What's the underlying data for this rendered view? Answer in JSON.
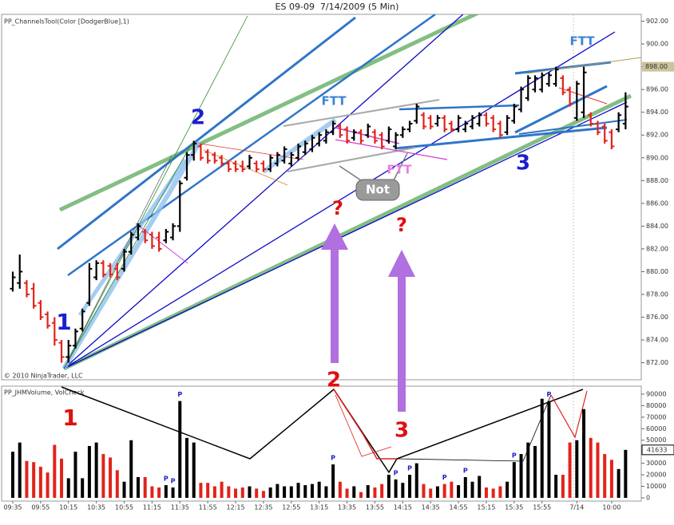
{
  "chart_data": [
    {
      "type": "ohlc",
      "title": "ES 09-09  7/14/2009 (5 Min)",
      "indicator": "PP_ChannelsTool(Color [DodgerBlue],1)",
      "copyright": "© 2010 NinjaTrader, LLC",
      "up_color": "#000000",
      "down_color": "#e2231a",
      "ylim": [
        870.5,
        902.6
      ],
      "yticks": [
        {
          "value": 872,
          "label": "872.00"
        },
        {
          "value": 874,
          "label": "874.00"
        },
        {
          "value": 876,
          "label": "876.00"
        },
        {
          "value": 878,
          "label": "878.00"
        },
        {
          "value": 880,
          "label": "880.00"
        },
        {
          "value": 882,
          "label": "882.00"
        },
        {
          "value": 884,
          "label": "884.00"
        },
        {
          "value": 886,
          "label": "886.00"
        },
        {
          "value": 888,
          "label": "888.00"
        },
        {
          "value": 890,
          "label": "890.00"
        },
        {
          "value": 892,
          "label": "892.00"
        },
        {
          "value": 894,
          "label": "894.00"
        },
        {
          "value": 896,
          "label": "896.00"
        },
        {
          "value": 898,
          "label": "898.00"
        },
        {
          "value": 900,
          "label": "900.00"
        },
        {
          "value": 902,
          "label": "902.00"
        }
      ],
      "price_line": {
        "value": 898,
        "label": "898.00",
        "color": "#cbc39b"
      },
      "open": [
        878.5,
        879,
        879,
        878.5,
        877.25,
        876.25,
        875.5,
        873.75,
        872.5,
        873.5,
        875,
        877.25,
        879.5,
        880.75,
        880.5,
        880.25,
        880.25,
        881.75,
        883,
        883.5,
        883.25,
        883,
        882.75,
        883,
        884,
        888.25,
        890.25,
        891,
        890.5,
        890.25,
        890,
        889.5,
        889.5,
        889.25,
        889.25,
        889.5,
        889.5,
        889,
        889.5,
        889.75,
        889.5,
        890,
        890.5,
        890.75,
        891.25,
        891.5,
        892.25,
        892.75,
        892.5,
        891.75,
        892.25,
        892,
        892.25,
        892,
        891.5,
        891,
        892,
        892.5,
        893.25,
        893.75,
        893.5,
        893,
        893.5,
        893,
        892.5,
        892.5,
        892.75,
        893,
        893.75,
        893.5,
        893,
        892.25,
        893.25,
        894.25,
        895.25,
        896,
        896,
        896.5,
        896.5,
        897,
        896,
        893.5,
        894,
        893.75,
        893,
        892.75,
        892.25,
        892.5,
        893
      ],
      "high": [
        880,
        881.5,
        879.25,
        879,
        877.5,
        876.5,
        876,
        874,
        874,
        875,
        876.75,
        880.75,
        881,
        881,
        880.75,
        880.75,
        882,
        883.5,
        884.25,
        883.75,
        883.5,
        883.5,
        883.75,
        884.25,
        888,
        890.5,
        891.5,
        891.25,
        890.75,
        890.5,
        890.25,
        889.75,
        889.75,
        889.75,
        890.25,
        889.75,
        889.75,
        890.25,
        890.5,
        891,
        890.5,
        891.25,
        891.5,
        892,
        892.25,
        892.5,
        893.25,
        893,
        892.75,
        892.5,
        892.5,
        893,
        892.5,
        892.25,
        892.75,
        892.25,
        892.75,
        893.25,
        894.75,
        894,
        893.75,
        893.75,
        893.75,
        893.25,
        893.75,
        893.25,
        893.75,
        894,
        894,
        893.75,
        893.25,
        893.75,
        894.75,
        896.25,
        897.25,
        897.25,
        897.5,
        897.5,
        898,
        897.25,
        896.25,
        896.75,
        898,
        894,
        893.25,
        893,
        892.5,
        894,
        895.75
      ],
      "low": [
        878.25,
        878.5,
        877.75,
        876.75,
        875.75,
        875,
        873.5,
        872,
        872,
        873.25,
        874.75,
        877,
        879.25,
        879.5,
        879.5,
        879.25,
        880,
        881.5,
        882.75,
        882.5,
        882,
        881.75,
        882.5,
        882.75,
        883.5,
        888,
        889.75,
        889.75,
        889.5,
        889.5,
        889.25,
        888.75,
        888.75,
        888.75,
        889,
        888.75,
        888.75,
        888.75,
        889.25,
        889.5,
        889.25,
        889.75,
        890.25,
        890.5,
        891,
        891.25,
        892,
        891.75,
        891.25,
        891.5,
        891.25,
        891.75,
        891.25,
        890.75,
        891.25,
        890.75,
        891.75,
        892.25,
        893,
        892.5,
        892.5,
        892.75,
        892.25,
        892.25,
        892.25,
        892.25,
        892.5,
        892.75,
        892.75,
        892.25,
        891.75,
        892,
        893,
        894,
        895,
        895.75,
        895.75,
        896.25,
        896.25,
        895.5,
        894.5,
        893.25,
        893.5,
        892.75,
        892,
        891.25,
        890.75,
        892.25,
        892.5
      ],
      "close": [
        879.5,
        880,
        878,
        877,
        876,
        875.25,
        874,
        872.5,
        873.5,
        874.75,
        876.5,
        880.25,
        880.75,
        879.75,
        879.75,
        879.5,
        881.75,
        883.25,
        884,
        882.75,
        882.25,
        882,
        883.5,
        884,
        887.75,
        890.25,
        891.25,
        890,
        889.75,
        889.75,
        889.5,
        889,
        889,
        889,
        890,
        889,
        889,
        890,
        890.25,
        890.75,
        890.25,
        891,
        891.25,
        891.75,
        892,
        892.25,
        893,
        892,
        891.5,
        892.25,
        891.5,
        892.75,
        891.5,
        891,
        892.5,
        892,
        892.5,
        893,
        894.5,
        892.75,
        892.75,
        893.5,
        892.5,
        892.5,
        893.5,
        893,
        893.5,
        893.75,
        893,
        892.5,
        892,
        893.5,
        894.5,
        896,
        897,
        897,
        897.25,
        897.25,
        897.75,
        895.75,
        894.75,
        896.5,
        897.5,
        893,
        892.25,
        891.5,
        891,
        893.75,
        894.5
      ],
      "annotations": [
        {
          "text": "1",
          "color": "#1d1dcf"
        },
        {
          "text": "2",
          "color": "#1d1dcf"
        },
        {
          "text": "3",
          "color": "#1d1dcf"
        },
        {
          "text": "FTT",
          "color": "#3a86d4"
        },
        {
          "text": "FTT",
          "color": "#3a86d4"
        },
        {
          "text": "FTT",
          "color": "#e47ee4"
        },
        {
          "text": "Not",
          "color": "#ffffff"
        },
        {
          "text": "?",
          "color": "#e01010"
        },
        {
          "text": "?",
          "color": "#e01010"
        }
      ]
    },
    {
      "type": "bar",
      "indicator": "PP_JHMVolume, VolCheck",
      "ylim": [
        -2800,
        96900
      ],
      "yticks": [
        0,
        10000,
        20000,
        30000,
        40000,
        50000,
        60000,
        70000,
        80000,
        90000
      ],
      "categories": [
        "09:35",
        null,
        null,
        null,
        "09:55",
        null,
        null,
        null,
        "10:15",
        null,
        null,
        null,
        "10:35",
        null,
        null,
        null,
        "10:55",
        null,
        null,
        null,
        "11:15",
        null,
        null,
        null,
        "11:35",
        null,
        null,
        null,
        "11:55",
        null,
        null,
        null,
        "12:15",
        null,
        null,
        null,
        "12:35",
        null,
        null,
        null,
        "12:55",
        null,
        null,
        null,
        "13:15",
        null,
        null,
        null,
        "13:35",
        null,
        null,
        null,
        "13:55",
        null,
        null,
        null,
        "14:15",
        null,
        null,
        null,
        "14:35",
        null,
        null,
        null,
        "14:55",
        null,
        null,
        null,
        "15:15",
        null,
        null,
        null,
        "15:35",
        null,
        null,
        null,
        "15:55",
        null,
        null,
        null,
        null,
        "7/14",
        null,
        null,
        null,
        null,
        "10:00",
        null,
        null
      ],
      "values": [
        40000,
        48000,
        32000,
        31000,
        27000,
        22000,
        46000,
        34000,
        17000,
        40000,
        17000,
        45000,
        48000,
        38000,
        35000,
        24000,
        14000,
        50000,
        18000,
        18000,
        10000,
        9000,
        11000,
        9000,
        84000,
        52000,
        48000,
        13000,
        13000,
        10000,
        14000,
        10000,
        8000,
        9000,
        10000,
        8000,
        6000,
        9000,
        12000,
        10000,
        10000,
        13000,
        11000,
        12000,
        14000,
        10000,
        29000,
        14000,
        8000,
        10000,
        5000,
        11000,
        9000,
        12000,
        20000,
        16000,
        13000,
        20000,
        30000,
        12000,
        8000,
        10000,
        12000,
        14000,
        11000,
        18000,
        14000,
        19000,
        9000,
        8000,
        10000,
        14000,
        31000,
        38000,
        48000,
        45000,
        86000,
        84000,
        20000,
        20000,
        48000,
        50000,
        77000,
        52000,
        48000,
        38000,
        33000,
        25000,
        41633
      ],
      "marker_labels": [
        null,
        null,
        null,
        null,
        null,
        null,
        null,
        null,
        null,
        null,
        null,
        null,
        null,
        null,
        null,
        null,
        null,
        null,
        null,
        null,
        null,
        null,
        "P",
        "P",
        "P",
        null,
        null,
        null,
        null,
        null,
        null,
        null,
        null,
        null,
        null,
        null,
        null,
        null,
        null,
        null,
        null,
        null,
        null,
        null,
        null,
        null,
        "P",
        null,
        null,
        null,
        null,
        null,
        null,
        null,
        null,
        "P",
        null,
        "P",
        null,
        null,
        null,
        null,
        "P",
        null,
        null,
        "P",
        null,
        null,
        null,
        null,
        null,
        null,
        "P",
        null,
        null,
        null,
        null,
        "P",
        null,
        null,
        null,
        null,
        null,
        null,
        null,
        null,
        null,
        null,
        null
      ],
      "marker_color": "#1a1ad0",
      "annotations": [
        {
          "text": "1",
          "color": "#e01010"
        },
        {
          "text": "2",
          "color": "#e01010"
        },
        {
          "text": "3",
          "color": "#e01010"
        }
      ]
    }
  ]
}
